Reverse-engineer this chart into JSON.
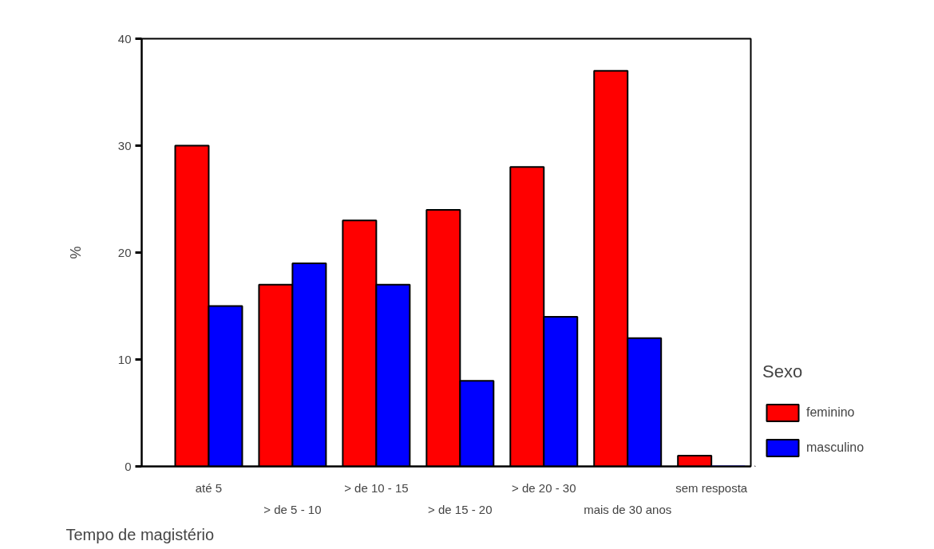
{
  "chart_data": {
    "type": "bar",
    "xlabel": "Tempo de magistério",
    "ylabel": "%",
    "legend_title": "Sexo",
    "categories": [
      "até 5",
      "> de 5 - 10",
      "> de 10 - 15",
      "> de 15 - 20",
      "> de 20 - 30",
      "mais de 30 anos",
      "sem resposta"
    ],
    "series": [
      {
        "name": "feminino",
        "color": "#ff0000",
        "values": [
          30,
          17,
          23,
          24,
          28,
          37,
          1
        ]
      },
      {
        "name": "masculino",
        "color": "#0000ff",
        "values": [
          15,
          19,
          17,
          8,
          14,
          12,
          0
        ]
      }
    ],
    "ylim": [
      0,
      40
    ],
    "yticks": [
      0,
      10,
      20,
      30,
      40
    ],
    "grid": false,
    "legend": "right"
  }
}
